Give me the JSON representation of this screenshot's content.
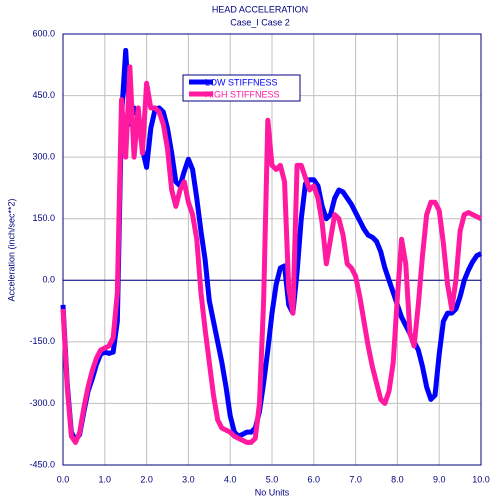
{
  "chart_data": {
    "type": "line",
    "title": "HEAD ACCELERATION",
    "subtitle": "Case_I Case 2",
    "xlabel": "No Units",
    "ylabel": "Acceleration (inch/sec**2)",
    "x": [
      0.0,
      0.1,
      0.2,
      0.3,
      0.4,
      0.5,
      0.6,
      0.7,
      0.8,
      0.9,
      1.0,
      1.1,
      1.2,
      1.3,
      1.4,
      1.5,
      1.6,
      1.7,
      1.8,
      1.9,
      2.0,
      2.1,
      2.2,
      2.3,
      2.4,
      2.5,
      2.6,
      2.7,
      2.8,
      2.9,
      3.0,
      3.1,
      3.2,
      3.3,
      3.4,
      3.5,
      3.6,
      3.7,
      3.8,
      3.9,
      4.0,
      4.1,
      4.2,
      4.3,
      4.4,
      4.5,
      4.6,
      4.7,
      4.8,
      4.9,
      5.0,
      5.1,
      5.2,
      5.3,
      5.4,
      5.5,
      5.6,
      5.7,
      5.8,
      5.9,
      6.0,
      6.1,
      6.2,
      6.3,
      6.4,
      6.5,
      6.6,
      6.7,
      6.8,
      6.9,
      7.0,
      7.1,
      7.2,
      7.3,
      7.4,
      7.5,
      7.6,
      7.7,
      7.8,
      7.9,
      8.0,
      8.1,
      8.2,
      8.3,
      8.4,
      8.5,
      8.6,
      8.7,
      8.8,
      8.9,
      9.0,
      9.1,
      9.2,
      9.3,
      9.4,
      9.5,
      9.6,
      9.7,
      9.8,
      9.9,
      10.0
    ],
    "series": [
      {
        "name": "LOW STIFFNESS",
        "color": "#0000ff",
        "values": [
          -60,
          -250,
          -370,
          -390,
          -375,
          -320,
          -270,
          -240,
          -205,
          -180,
          -175,
          -178,
          -175,
          -100,
          400,
          560,
          380,
          420,
          400,
          320,
          275,
          370,
          415,
          420,
          410,
          370,
          310,
          240,
          230,
          265,
          295,
          270,
          200,
          120,
          50,
          -50,
          -100,
          -150,
          -200,
          -260,
          -330,
          -370,
          -380,
          -375,
          -370,
          -370,
          -360,
          -320,
          -250,
          -170,
          -80,
          -10,
          30,
          35,
          -60,
          -80,
          20,
          150,
          235,
          245,
          245,
          230,
          180,
          150,
          160,
          200,
          220,
          215,
          200,
          185,
          165,
          145,
          125,
          110,
          105,
          95,
          70,
          30,
          0,
          -30,
          -60,
          -90,
          -110,
          -130,
          -150,
          -170,
          -210,
          -260,
          -290,
          -280,
          -180,
          -100,
          -80,
          -80,
          -70,
          -40,
          0,
          25,
          45,
          60,
          65
        ]
      },
      {
        "name": "HIGH STIFFNESS",
        "color": "#ff1aa0",
        "values": [
          -70,
          -260,
          -380,
          -395,
          -370,
          -310,
          -260,
          -220,
          -190,
          -170,
          -165,
          -160,
          -140,
          -30,
          440,
          300,
          520,
          300,
          420,
          310,
          480,
          420,
          420,
          410,
          380,
          320,
          220,
          180,
          220,
          240,
          190,
          160,
          100,
          -30,
          -120,
          -200,
          -280,
          -340,
          -360,
          -365,
          -370,
          -380,
          -385,
          -390,
          -395,
          -395,
          -385,
          -300,
          -50,
          390,
          280,
          270,
          280,
          240,
          -20,
          -80,
          280,
          280,
          250,
          220,
          230,
          200,
          140,
          40,
          100,
          160,
          150,
          110,
          40,
          30,
          10,
          -40,
          -100,
          -160,
          -210,
          -250,
          -290,
          -300,
          -270,
          -200,
          -40,
          100,
          40,
          -130,
          -160,
          -60,
          60,
          160,
          190,
          190,
          170,
          90,
          -10,
          -70,
          0,
          120,
          160,
          165,
          160,
          155,
          150
        ]
      }
    ],
    "xlim": [
      0,
      10
    ],
    "ylim": [
      -450,
      600
    ],
    "xticks": [
      {
        "value": 0,
        "label": "0.0"
      },
      {
        "value": 1,
        "label": "1.0"
      },
      {
        "value": 2,
        "label": "2.0"
      },
      {
        "value": 3,
        "label": "3.0"
      },
      {
        "value": 4,
        "label": "4.0"
      },
      {
        "value": 5,
        "label": "5.0"
      },
      {
        "value": 6,
        "label": "6.0"
      },
      {
        "value": 7,
        "label": "7.0"
      },
      {
        "value": 8,
        "label": "8.0"
      },
      {
        "value": 9,
        "label": "9.0"
      },
      {
        "value": 10,
        "label": "10.0"
      }
    ],
    "yticks": [
      {
        "value": -450,
        "label": "-450.0"
      },
      {
        "value": -300,
        "label": "-300.0"
      },
      {
        "value": -150,
        "label": "-150.0"
      },
      {
        "value": 0,
        "label": "0.0"
      },
      {
        "value": 150,
        "label": "150.0"
      },
      {
        "value": 300,
        "label": "300.0"
      },
      {
        "value": 450,
        "label": "450.0"
      },
      {
        "value": 600,
        "label": "600.0"
      }
    ],
    "grid": true
  }
}
